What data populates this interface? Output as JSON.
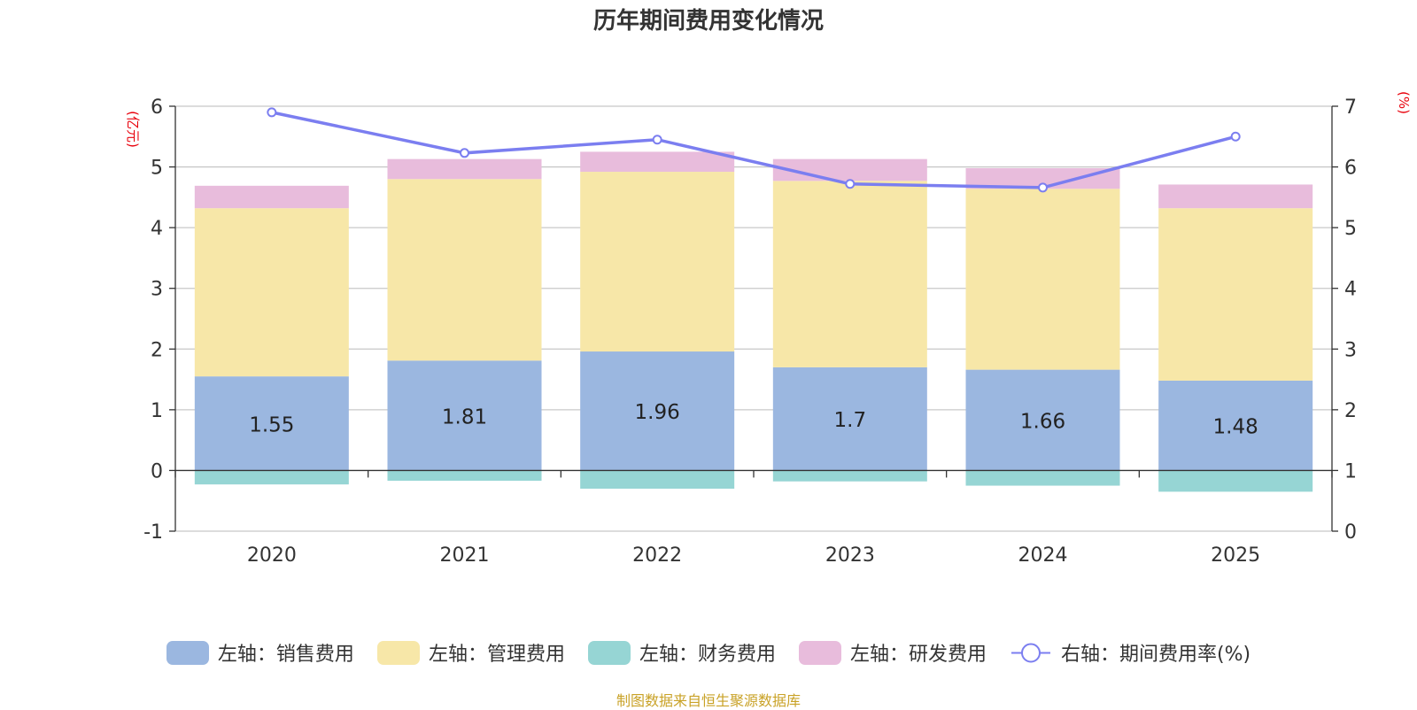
{
  "chart_data": {
    "type": "bar",
    "stacked": true,
    "title": "历年期间费用变化情况",
    "categories": [
      "2020",
      "2021",
      "2022",
      "2023",
      "2024",
      "2025"
    ],
    "left_axis": {
      "unit": "(亿元)",
      "ylim": [
        -1,
        6
      ],
      "ticks": [
        "-1",
        "0",
        "1",
        "2",
        "3",
        "4",
        "5",
        "6"
      ]
    },
    "right_axis": {
      "unit": "(%)",
      "ylim": [
        0,
        7
      ],
      "ticks": [
        "0",
        "1",
        "2",
        "3",
        "4",
        "5",
        "6",
        "7"
      ]
    },
    "series": [
      {
        "name": "左轴：销售费用",
        "axis": "left",
        "type": "bar",
        "color": "#9bb7e0",
        "values": [
          1.55,
          1.81,
          1.96,
          1.7,
          1.66,
          1.48
        ],
        "show_labels": true
      },
      {
        "name": "左轴：管理费用",
        "axis": "left",
        "type": "bar",
        "color": "#f7e7a8",
        "values": [
          2.77,
          2.99,
          2.96,
          3.07,
          2.98,
          2.84
        ]
      },
      {
        "name": "左轴：财务费用",
        "axis": "left",
        "type": "bar",
        "color": "#96d5d4",
        "values": [
          -0.23,
          -0.17,
          -0.3,
          -0.18,
          -0.25,
          -0.35
        ]
      },
      {
        "name": "左轴：研发费用",
        "axis": "left",
        "type": "bar",
        "color": "#e8bcdc",
        "values": [
          0.37,
          0.33,
          0.33,
          0.36,
          0.34,
          0.39
        ]
      },
      {
        "name": "右轴：期间费用率(%)",
        "axis": "right",
        "type": "line",
        "color": "#7b7ef0",
        "values": [
          6.9,
          6.23,
          6.45,
          5.72,
          5.66,
          6.5
        ]
      }
    ],
    "legend_position": "bottom",
    "grid": true
  },
  "source_note": "制图数据来自恒生聚源数据库"
}
